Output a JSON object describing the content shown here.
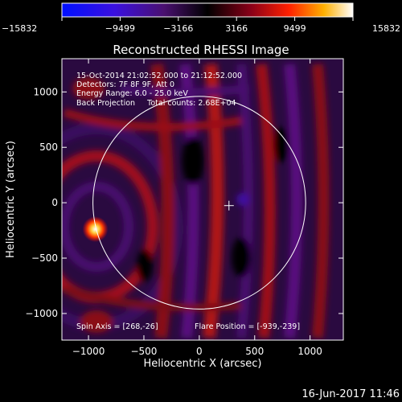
{
  "colorbar": {
    "tick_labels": [
      "−15832",
      "−9499",
      "−3166",
      "3166",
      "9499",
      "15832"
    ],
    "tick_values": [
      -15832,
      -9499,
      -3166,
      3166,
      9499,
      15832
    ],
    "range": [
      -15832,
      15832
    ]
  },
  "plot": {
    "title": "Reconstructed RHESSI Image",
    "info_lines": [
      "15-Oct-2014 21:02:52.000 to 21:12:52.000",
      "Detectors: 7F 8F 9F, Att 0",
      "Energy Range: 6.0 - 25.0 keV",
      "Back Projection     Total counts: 2.68E+04"
    ],
    "spin_axis": "Spin Axis = [268,-26]",
    "flare_position": "Flare Position = [-939,-239]",
    "xlabel": "Heliocentric X (arcsec)",
    "ylabel": "Heliocentric Y (arcsec)",
    "x_ticks": [
      "−1000",
      "−500",
      "0",
      "500",
      "1000"
    ],
    "x_tick_values": [
      -1000,
      -500,
      0,
      500,
      1000
    ],
    "y_ticks": [
      "1000",
      "500",
      "0",
      "−500",
      "−1000"
    ],
    "y_tick_values": [
      1000,
      500,
      0,
      -500,
      -1000
    ],
    "xlim": [
      -1240,
      1300
    ],
    "ylim": [
      -1240,
      1300
    ],
    "flare": {
      "x": -939,
      "y": -239
    },
    "spin_axis_point": {
      "x": 268,
      "y": -26
    },
    "solar_radius_arcsec": 960
  },
  "footer": {
    "timestamp": "16-Jun-2017 11:46"
  },
  "colors": {
    "background": "#000000",
    "axis": "#ffffff",
    "cmap_low": "#0000ff",
    "cmap_mid": "#000000",
    "cmap_high": "#ffffff"
  }
}
